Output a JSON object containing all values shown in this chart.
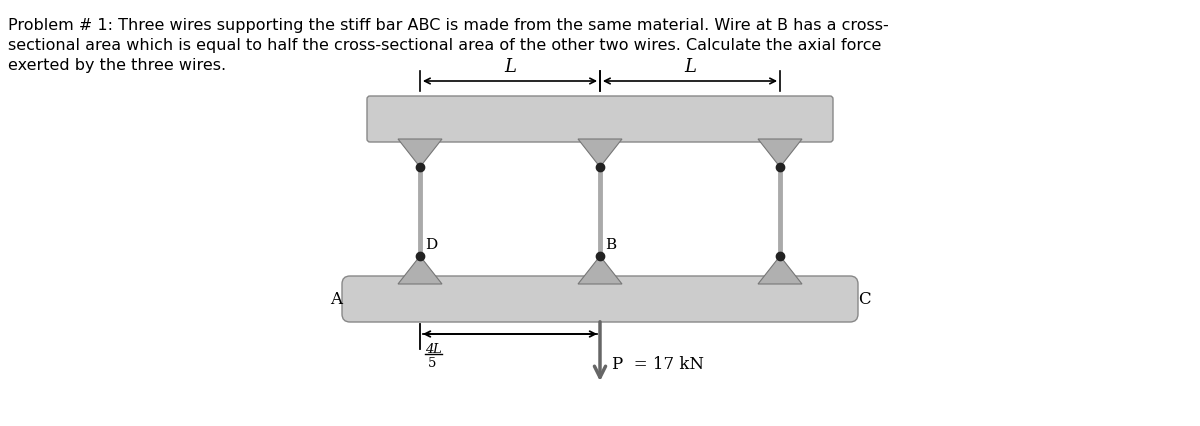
{
  "text_lines": [
    "Problem # 1: Three wires supporting the stiff bar ABC is made from the same material. Wire at B has a cross-",
    "sectional area which is equal to half the cross-sectional area of the other two wires. Calculate the axial force",
    "exerted by the three wires."
  ],
  "bg_color": "#ffffff",
  "ceiling_color": "#cccccc",
  "bar_color": "#cccccc",
  "wire_color": "#aaaaaa",
  "tri_color": "#b0b0b0",
  "dot_color": "#222222",
  "text_color": "#000000",
  "problem_fontsize": 11.5,
  "label_fontsize": 12,
  "dim_fontsize": 13,
  "fig_width": 12.0,
  "fig_height": 4.27,
  "dpi": 100
}
